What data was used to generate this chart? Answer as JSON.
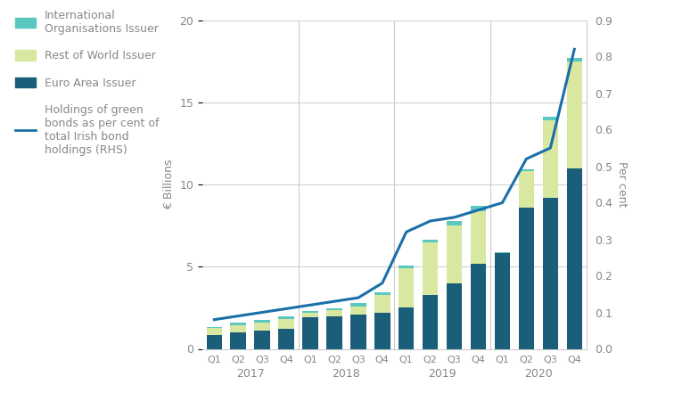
{
  "quarters": [
    "Q1",
    "Q2",
    "Q3",
    "Q4",
    "Q1",
    "Q2",
    "Q3",
    "Q4",
    "Q1",
    "Q2",
    "Q3",
    "Q4",
    "Q1",
    "Q2",
    "Q3",
    "Q4"
  ],
  "years": [
    "2017",
    "2018",
    "2019",
    "2020"
  ],
  "year_midpoints": [
    1.5,
    5.5,
    9.5,
    13.5
  ],
  "year_boundaries": [
    3.5,
    7.5,
    11.5
  ],
  "euro_area": [
    0.85,
    1.0,
    1.1,
    1.2,
    1.9,
    2.0,
    2.1,
    2.2,
    2.5,
    3.3,
    4.0,
    5.2,
    5.8,
    8.6,
    9.2,
    11.0
  ],
  "rest_of_world": [
    0.4,
    0.45,
    0.5,
    0.6,
    0.3,
    0.35,
    0.5,
    1.1,
    2.4,
    3.2,
    3.5,
    3.2,
    0.0,
    2.2,
    4.7,
    6.5
  ],
  "intl_org": [
    0.1,
    0.15,
    0.15,
    0.2,
    0.1,
    0.1,
    0.2,
    0.15,
    0.15,
    0.15,
    0.3,
    0.3,
    0.1,
    0.1,
    0.2,
    0.2
  ],
  "line_rhs": [
    0.08,
    0.09,
    0.1,
    0.11,
    0.12,
    0.13,
    0.14,
    0.18,
    0.32,
    0.35,
    0.36,
    0.38,
    0.4,
    0.52,
    0.55,
    0.82
  ],
  "euro_area_color": "#1a5e7a",
  "rest_of_world_color": "#d9e8a0",
  "intl_org_color": "#5bc8c0",
  "line_color": "#1a6fa8",
  "ylim_left": [
    0,
    20
  ],
  "ylim_right": [
    0,
    0.9
  ],
  "yticks_left": [
    0,
    5,
    10,
    15,
    20
  ],
  "yticks_right": [
    0.0,
    0.1,
    0.2,
    0.3,
    0.4,
    0.5,
    0.6,
    0.7,
    0.8,
    0.9
  ],
  "ylabel_left": "€ Billions",
  "ylabel_right": "Per cent",
  "legend_labels": [
    "International\nOrganisations Issuer",
    "Rest of World Issuer",
    "Euro Area Issuer",
    "Holdings of green\nbonds as per cent of\ntotal Irish bond\nholdings (RHS)"
  ],
  "legend_colors": [
    "#5bc8c0",
    "#d9e8a0",
    "#1a5e7a",
    "#1a6fa8"
  ],
  "bg_color": "#ffffff",
  "grid_color": "#cccccc",
  "text_color": "#888888"
}
